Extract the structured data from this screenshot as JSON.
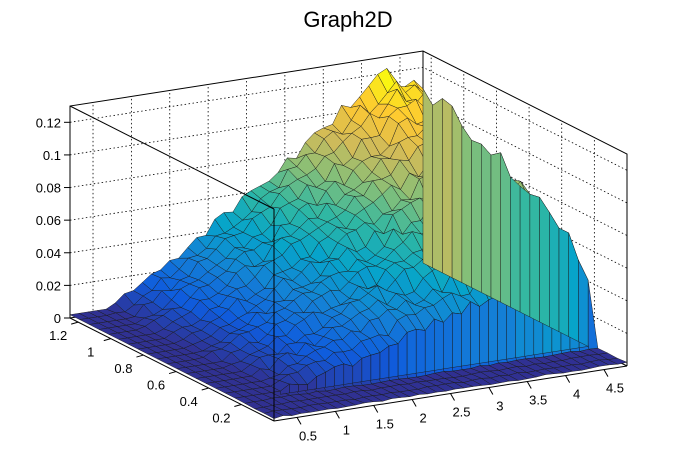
{
  "chart_data": {
    "type": "surface",
    "title": "Graph2D",
    "xlabel": "",
    "ylabel": "",
    "zlabel": "",
    "xlim": [
      0.2,
      4.8
    ],
    "ylim": [
      0.0,
      1.25
    ],
    "zlim": [
      0,
      0.13
    ],
    "x_ticks": [
      "0.5",
      "1",
      "1.5",
      "2",
      "2.5",
      "3",
      "3.5",
      "4",
      "4.5"
    ],
    "y_ticks": [
      "0.2",
      "0.4",
      "0.6",
      "0.8",
      "1",
      "1.2"
    ],
    "z_ticks": [
      "0",
      "0.02",
      "0.04",
      "0.06",
      "0.08",
      "0.1",
      "0.12"
    ],
    "z_model": {
      "description_free": true,
      "x_grid": [
        0.2,
        4.8,
        40
      ],
      "y_grid": [
        0.0,
        1.25,
        22
      ],
      "peak_z": 0.12,
      "peak_x": 4.3,
      "floor_below_y": 0.22,
      "noise": 0.008
    },
    "colormap": [
      "#352a87",
      "#0f5cdd",
      "#1481d6",
      "#06a4ca",
      "#2eb7a4",
      "#87bf77",
      "#d1bb59",
      "#fec832",
      "#f9fb0e"
    ],
    "grid": true
  }
}
